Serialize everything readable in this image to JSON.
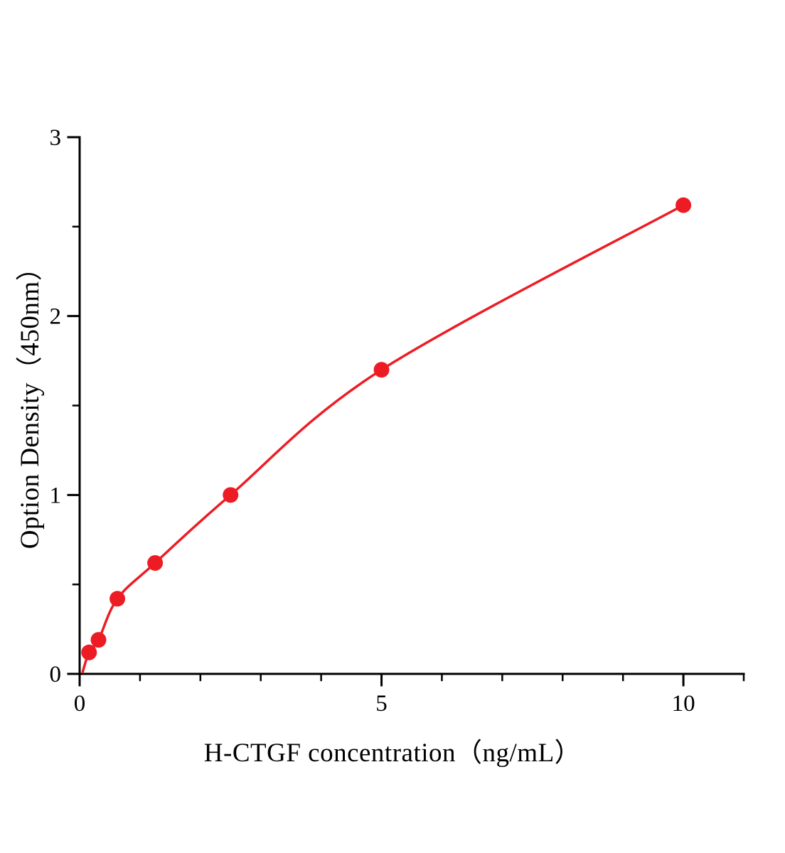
{
  "chart_data": {
    "type": "scatter",
    "title": "",
    "xlabel": "H-CTGF concentration（ng/mL）",
    "ylabel": "Option Density（450nm）",
    "x": [
      0.156,
      0.3125,
      0.625,
      1.25,
      2.5,
      5,
      10
    ],
    "y": [
      0.12,
      0.19,
      0.42,
      0.62,
      1.0,
      1.7,
      2.62
    ],
    "curve_start": [
      0.05,
      0.01
    ],
    "xlim": [
      0,
      11
    ],
    "ylim": [
      0,
      3
    ],
    "x_major_ticks": [
      0,
      5,
      10
    ],
    "x_minor_ticks": [
      1,
      2,
      3,
      4,
      6,
      7,
      8,
      9,
      11
    ],
    "y_major_ticks": [
      0,
      1,
      2,
      3
    ],
    "y_minor_ticks": [
      0.5,
      1.5,
      2.5
    ],
    "point_color": "#ed1c24",
    "line_color": "#ed1c24",
    "axis_color": "#000000",
    "background": "#ffffff",
    "grid": false,
    "legend": "none"
  }
}
